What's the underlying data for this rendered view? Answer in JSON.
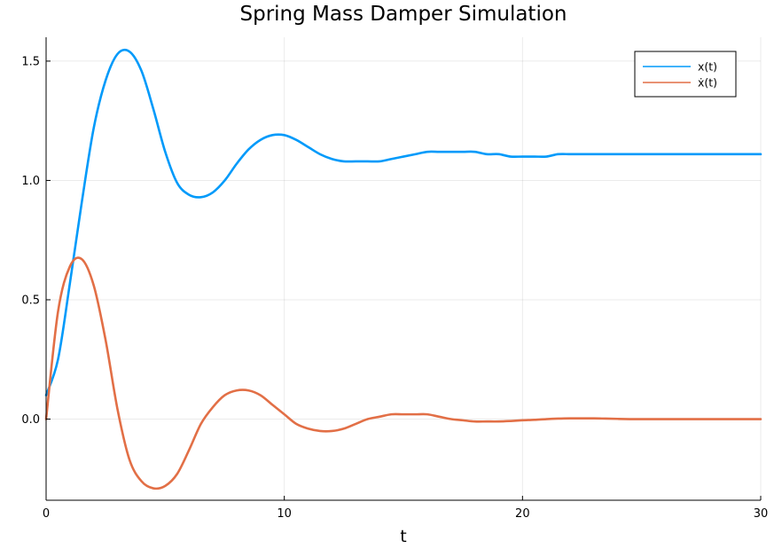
{
  "chart_data": {
    "type": "line",
    "title": "Spring Mass Damper Simulation",
    "xlabel": "t",
    "ylabel": "",
    "xlim": [
      0,
      30
    ],
    "ylim": [
      -0.34,
      1.6
    ],
    "xticks": [
      0,
      10,
      20,
      30
    ],
    "xtick_labels": [
      "0",
      "10",
      "20",
      "30"
    ],
    "yticks": [
      0.0,
      0.5,
      1.0,
      1.5
    ],
    "ytick_labels": [
      "0.0",
      "0.5",
      "1.0",
      "1.5"
    ],
    "grid": true,
    "legend_position": "top-right",
    "x": [
      0,
      0.5,
      1,
      1.5,
      2,
      2.5,
      3,
      3.5,
      4,
      4.5,
      5,
      5.5,
      6,
      6.5,
      7,
      7.5,
      8,
      8.5,
      9,
      9.5,
      10,
      10.5,
      11,
      11.5,
      12,
      12.5,
      13,
      13.5,
      14,
      14.5,
      15,
      15.5,
      16,
      16.5,
      17,
      17.5,
      18,
      18.5,
      19,
      19.5,
      20,
      20.5,
      21,
      21.5,
      22,
      22.5,
      23,
      23.5,
      24,
      24.5,
      25,
      25.5,
      26,
      26.5,
      27,
      27.5,
      28,
      28.5,
      29,
      29.5,
      30
    ],
    "series": [
      {
        "name": "x(t)",
        "color": "#009AFA",
        "values": [
          0.1,
          0.25,
          0.57,
          0.91,
          1.22,
          1.42,
          1.53,
          1.54,
          1.46,
          1.3,
          1.12,
          0.99,
          0.94,
          0.93,
          0.95,
          1.0,
          1.07,
          1.13,
          1.17,
          1.19,
          1.19,
          1.17,
          1.14,
          1.11,
          1.09,
          1.08,
          1.08,
          1.08,
          1.08,
          1.09,
          1.1,
          1.11,
          1.12,
          1.12,
          1.12,
          1.12,
          1.12,
          1.11,
          1.11,
          1.1,
          1.1,
          1.1,
          1.1,
          1.11,
          1.11,
          1.11,
          1.11,
          1.11,
          1.11,
          1.11,
          1.11,
          1.11,
          1.11,
          1.11,
          1.11,
          1.11,
          1.11,
          1.11,
          1.11,
          1.11,
          1.11
        ]
      },
      {
        "name": "ẋ(t)",
        "color": "#E26F46",
        "values": [
          0.0,
          0.45,
          0.64,
          0.67,
          0.56,
          0.33,
          0.04,
          -0.17,
          -0.26,
          -0.29,
          -0.28,
          -0.23,
          -0.13,
          -0.02,
          0.05,
          0.1,
          0.12,
          0.12,
          0.1,
          0.06,
          0.02,
          -0.02,
          -0.04,
          -0.05,
          -0.05,
          -0.04,
          -0.02,
          0.0,
          0.01,
          0.02,
          0.02,
          0.02,
          0.02,
          0.01,
          0.0,
          -0.005,
          -0.01,
          -0.01,
          -0.01,
          -0.008,
          -0.005,
          -0.003,
          0.0,
          0.002,
          0.003,
          0.003,
          0.003,
          0.002,
          0.001,
          0.0,
          0.0,
          0.0,
          0.0,
          0.0,
          0.0,
          0.0,
          0.0,
          0.0,
          0.0,
          0.0,
          0.0
        ]
      }
    ]
  }
}
